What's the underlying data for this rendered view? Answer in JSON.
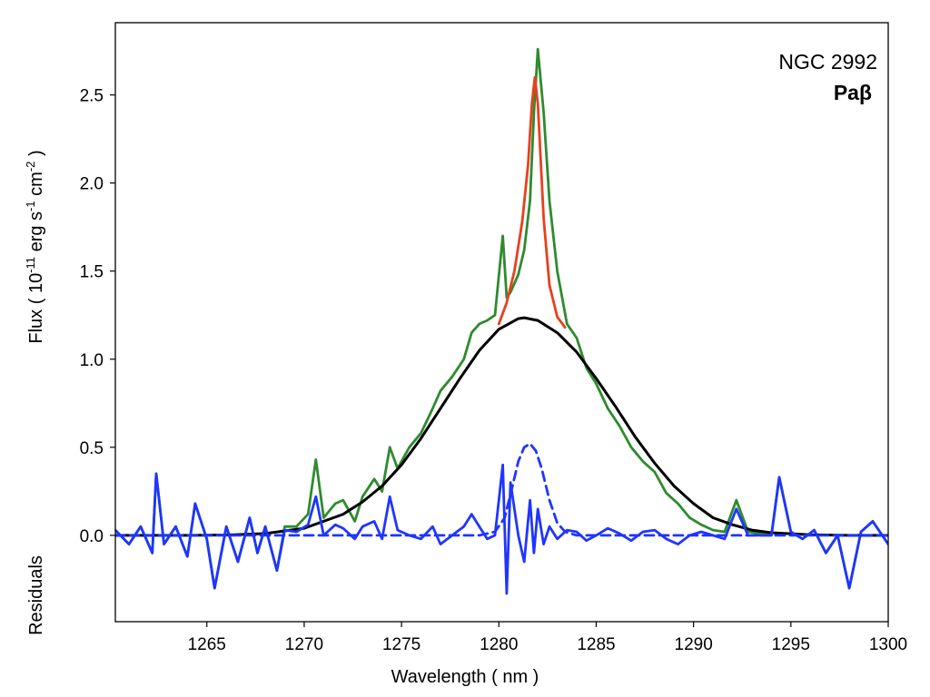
{
  "chart_data": {
    "type": "line",
    "annotation": {
      "object": "NGC 2992",
      "line": "Paβ"
    },
    "xlabel": "Wavelength ( nm )",
    "ylabel": {
      "pre": "Flux ( 10",
      "exp1": "-11",
      "mid1": " erg s",
      "exp2": "-1",
      "mid2": " cm",
      "exp3": "-2",
      "post": " )"
    },
    "ylabel2": "Residuals",
    "xlim": [
      1260.3,
      1300
    ],
    "ylim": [
      -0.49,
      2.91
    ],
    "xticks": [
      1265,
      1270,
      1275,
      1280,
      1285,
      1290,
      1295,
      1300
    ],
    "xtick_labels": [
      "1265",
      "1270",
      "1275",
      "1280",
      "1285",
      "1290",
      "1295",
      "1300"
    ],
    "yticks": [
      0.0,
      0.5,
      1.0,
      1.5,
      2.0,
      2.5
    ],
    "ytick_labels": [
      "0.0",
      "0.5",
      "1.0",
      "1.5",
      "2.0",
      "2.5"
    ],
    "grid": false,
    "colors": {
      "observed": "#2e8b2e",
      "total_fit": "#e8401c",
      "broad": "#000000",
      "residual": "#1f35ff",
      "narrow": "#1f35ff"
    },
    "series": [
      {
        "key": "observed",
        "style": "solid",
        "x": [
          1260.3,
          1261.0,
          1261.6,
          1262.2,
          1262.4,
          1262.8,
          1263.4,
          1264.0,
          1264.4,
          1265.0,
          1265.4,
          1266.0,
          1266.6,
          1267.2,
          1267.6,
          1268.0,
          1268.6,
          1269.0,
          1269.6,
          1270.2,
          1270.6,
          1271.0,
          1271.6,
          1272.0,
          1272.6,
          1273.0,
          1273.6,
          1274.0,
          1274.4,
          1274.8,
          1275.4,
          1276.0,
          1276.6,
          1277.0,
          1277.6,
          1278.2,
          1278.6,
          1279.0,
          1279.4,
          1279.8,
          1280.2,
          1280.4,
          1280.6,
          1281.0,
          1281.3,
          1281.6,
          1281.8,
          1282.0,
          1282.3,
          1282.6,
          1283.0,
          1283.5,
          1284.0,
          1284.5,
          1285.0,
          1285.6,
          1286.2,
          1286.8,
          1287.4,
          1288.0,
          1288.6,
          1289.2,
          1289.8,
          1290.4,
          1291.0,
          1291.6,
          1292.2,
          1292.8,
          1293.4,
          1294.0,
          1294.4,
          1295.0,
          1295.6,
          1296.2,
          1296.8,
          1297.4,
          1298.0,
          1298.6,
          1299.2,
          1300.0
        ],
        "y": [
          0.03,
          -0.05,
          0.05,
          -0.1,
          0.35,
          -0.05,
          0.05,
          -0.12,
          0.18,
          -0.02,
          -0.3,
          0.05,
          -0.15,
          0.1,
          -0.1,
          0.05,
          -0.2,
          0.05,
          0.05,
          0.12,
          0.43,
          0.1,
          0.18,
          0.2,
          0.08,
          0.22,
          0.32,
          0.25,
          0.5,
          0.38,
          0.5,
          0.58,
          0.72,
          0.82,
          0.9,
          1.0,
          1.15,
          1.2,
          1.22,
          1.25,
          1.7,
          1.35,
          1.38,
          1.48,
          1.62,
          1.9,
          2.4,
          2.76,
          2.4,
          1.9,
          1.5,
          1.2,
          1.12,
          0.95,
          0.86,
          0.72,
          0.62,
          0.5,
          0.42,
          0.36,
          0.24,
          0.18,
          0.1,
          0.06,
          0.03,
          0.02,
          0.2,
          0.02,
          0.01,
          0.0,
          0.33,
          0.02,
          -0.02,
          0.03,
          -0.1,
          0.0,
          -0.3,
          0.02,
          0.08,
          -0.05
        ]
      },
      {
        "key": "total_fit",
        "style": "solid",
        "x": [
          1280.0,
          1280.4,
          1280.8,
          1281.2,
          1281.5,
          1281.7,
          1281.85,
          1282.0,
          1282.3,
          1282.6,
          1283.0,
          1283.4
        ],
        "y": [
          1.2,
          1.32,
          1.5,
          1.78,
          2.1,
          2.45,
          2.6,
          2.45,
          1.8,
          1.42,
          1.24,
          1.18
        ]
      },
      {
        "key": "broad",
        "style": "solid",
        "x": [
          1260.3,
          1264,
          1266,
          1268,
          1270,
          1272,
          1273,
          1274,
          1275,
          1276,
          1277,
          1278,
          1279,
          1280,
          1281,
          1281.3,
          1282,
          1283,
          1284,
          1285,
          1286,
          1287,
          1288,
          1289,
          1290,
          1291,
          1292,
          1293,
          1294,
          1296,
          1298,
          1300
        ],
        "y": [
          0.0,
          0.0,
          0.002,
          0.01,
          0.04,
          0.12,
          0.19,
          0.28,
          0.4,
          0.55,
          0.72,
          0.89,
          1.05,
          1.17,
          1.23,
          1.235,
          1.22,
          1.15,
          1.04,
          0.89,
          0.73,
          0.56,
          0.41,
          0.28,
          0.18,
          0.1,
          0.06,
          0.03,
          0.015,
          0.003,
          0.0,
          0.0
        ]
      },
      {
        "key": "residual",
        "style": "solid",
        "x": [
          1260.3,
          1261.0,
          1261.6,
          1262.2,
          1262.4,
          1262.8,
          1263.4,
          1264.0,
          1264.4,
          1265.0,
          1265.4,
          1266.0,
          1266.6,
          1267.2,
          1267.6,
          1268.0,
          1268.6,
          1269.0,
          1269.6,
          1270.2,
          1270.6,
          1271.0,
          1271.6,
          1272.0,
          1272.6,
          1273.0,
          1273.6,
          1274.0,
          1274.4,
          1274.8,
          1275.4,
          1276.0,
          1276.6,
          1277.0,
          1277.6,
          1278.2,
          1278.6,
          1279.0,
          1279.4,
          1279.8,
          1280.2,
          1280.4,
          1280.6,
          1281.0,
          1281.3,
          1281.6,
          1281.8,
          1282.0,
          1282.3,
          1282.6,
          1283.0,
          1283.5,
          1284.0,
          1284.5,
          1285.0,
          1285.6,
          1286.2,
          1286.8,
          1287.4,
          1288.0,
          1288.6,
          1289.2,
          1289.8,
          1290.4,
          1291.0,
          1291.6,
          1292.2,
          1292.8,
          1293.4,
          1294.0,
          1294.4,
          1295.0,
          1295.6,
          1296.2,
          1296.8,
          1297.4,
          1298.0,
          1298.6,
          1299.2,
          1300.0
        ],
        "y": [
          0.03,
          -0.05,
          0.05,
          -0.1,
          0.35,
          -0.05,
          0.05,
          -0.12,
          0.18,
          -0.02,
          -0.3,
          0.05,
          -0.15,
          0.1,
          -0.1,
          0.05,
          -0.2,
          0.03,
          0.02,
          0.06,
          0.22,
          0.0,
          0.06,
          0.04,
          -0.02,
          0.05,
          0.08,
          -0.02,
          0.22,
          0.03,
          0.0,
          -0.02,
          0.05,
          -0.05,
          0.0,
          0.05,
          0.12,
          0.05,
          -0.02,
          0.0,
          0.4,
          -0.33,
          0.3,
          0.0,
          -0.15,
          0.2,
          -0.1,
          0.15,
          -0.05,
          0.05,
          -0.02,
          0.03,
          0.02,
          -0.03,
          0.0,
          0.04,
          0.01,
          -0.03,
          0.02,
          0.03,
          -0.02,
          -0.05,
          0.0,
          0.02,
          0.0,
          -0.02,
          0.15,
          0.0,
          0.0,
          0.0,
          0.33,
          0.02,
          -0.02,
          0.03,
          -0.1,
          0.0,
          -0.3,
          0.02,
          0.08,
          -0.05
        ]
      },
      {
        "key": "narrow",
        "style": "dashed",
        "x": [
          1260.3,
          1279.0,
          1279.8,
          1280.3,
          1280.7,
          1281.0,
          1281.3,
          1281.6,
          1281.9,
          1282.2,
          1282.6,
          1283.0,
          1283.4,
          1284.0,
          1300.0
        ],
        "y": [
          0.0,
          0.0,
          0.02,
          0.1,
          0.28,
          0.42,
          0.5,
          0.52,
          0.48,
          0.38,
          0.2,
          0.07,
          0.02,
          0.0,
          0.0
        ]
      }
    ]
  }
}
